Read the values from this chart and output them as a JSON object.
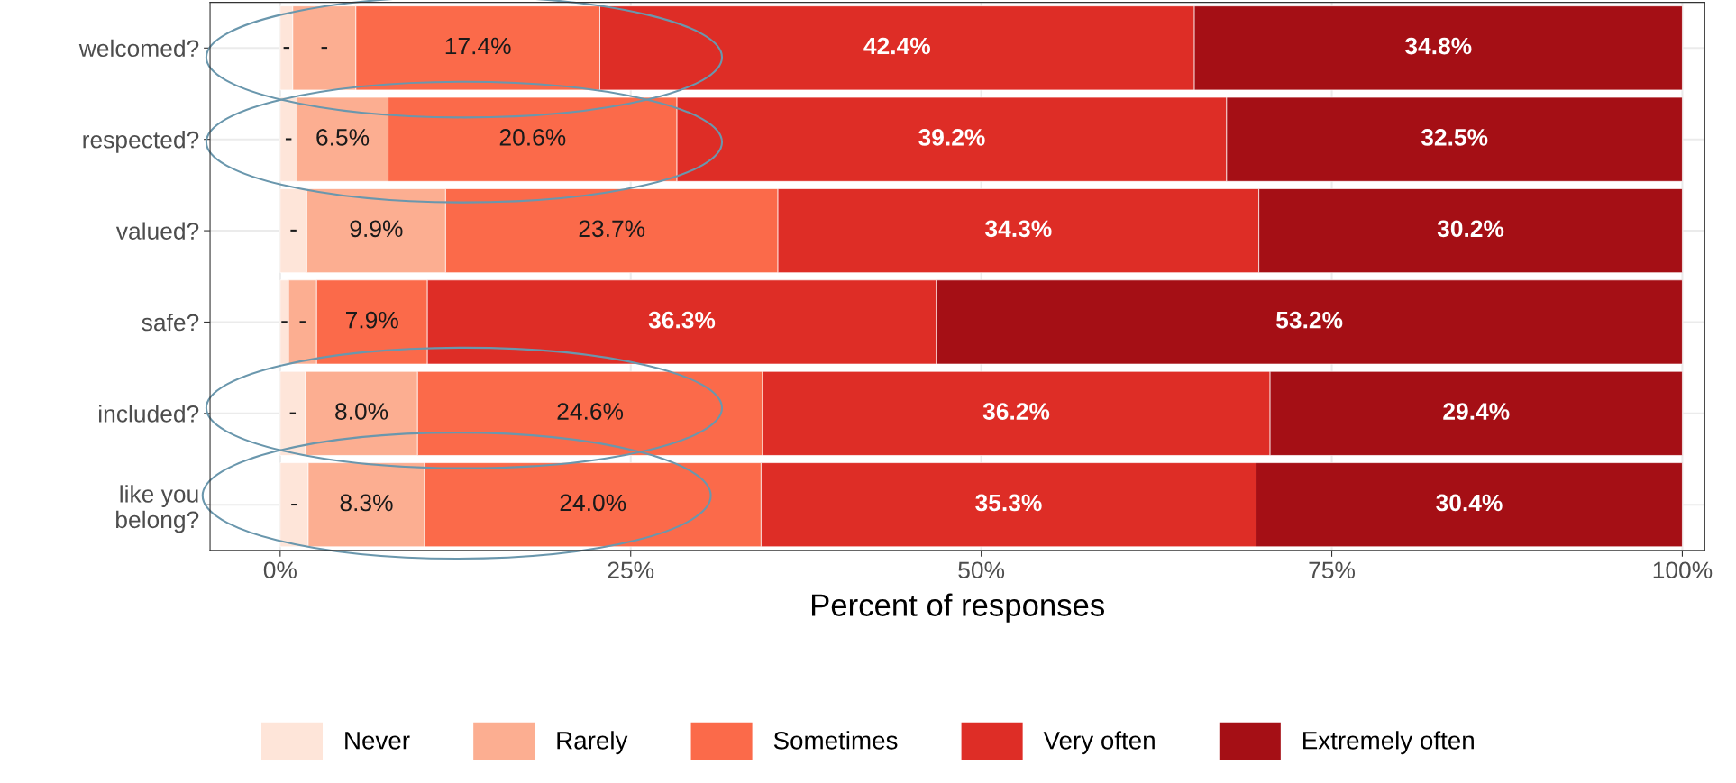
{
  "chart_data": {
    "type": "bar",
    "orientation": "horizontal",
    "stacked": true,
    "categories": [
      "welcomed?",
      "respected?",
      "valued?",
      "safe?",
      "included?",
      "like you\nbelong?"
    ],
    "xlabel": "Percent of responses",
    "xlim": [
      -5,
      101.6
    ],
    "xticks": [
      {
        "value": 0,
        "label": "0%"
      },
      {
        "value": 25,
        "label": "25%"
      },
      {
        "value": 50,
        "label": "50%"
      },
      {
        "value": 75,
        "label": "75%"
      },
      {
        "value": 100,
        "label": "100%"
      }
    ],
    "grid": true,
    "legend": "bottom",
    "series": [
      {
        "name": "Never",
        "color": "#fee5d9",
        "values": [
          0.9,
          1.2,
          1.9,
          0.6,
          1.8,
          2.0
        ],
        "value_labels": [
          "-",
          "-",
          "-",
          "-",
          "-",
          "-"
        ]
      },
      {
        "name": "Rarely",
        "color": "#fcae91",
        "values": [
          4.5,
          6.5,
          9.9,
          2.0,
          8.0,
          8.3
        ],
        "value_labels": [
          "-",
          "6.5%",
          "9.9%",
          "-",
          "8.0%",
          "8.3%"
        ]
      },
      {
        "name": "Sometimes",
        "color": "#fb6a4a",
        "values": [
          17.4,
          20.6,
          23.7,
          7.9,
          24.6,
          24.0
        ],
        "value_labels": [
          "17.4%",
          "20.6%",
          "23.7%",
          "7.9%",
          "24.6%",
          "24.0%"
        ]
      },
      {
        "name": "Very often",
        "color": "#de2d26",
        "values": [
          42.4,
          39.2,
          34.3,
          36.3,
          36.2,
          35.3
        ],
        "value_labels": [
          "42.4%",
          "39.2%",
          "34.3%",
          "36.3%",
          "36.2%",
          "35.3%"
        ]
      },
      {
        "name": "Extremely often",
        "color": "#a50f15",
        "values": [
          34.8,
          32.5,
          30.2,
          53.2,
          29.4,
          30.4
        ],
        "value_labels": [
          "34.8%",
          "32.5%",
          "30.2%",
          "53.2%",
          "29.4%",
          "30.4%"
        ]
      }
    ]
  }
}
